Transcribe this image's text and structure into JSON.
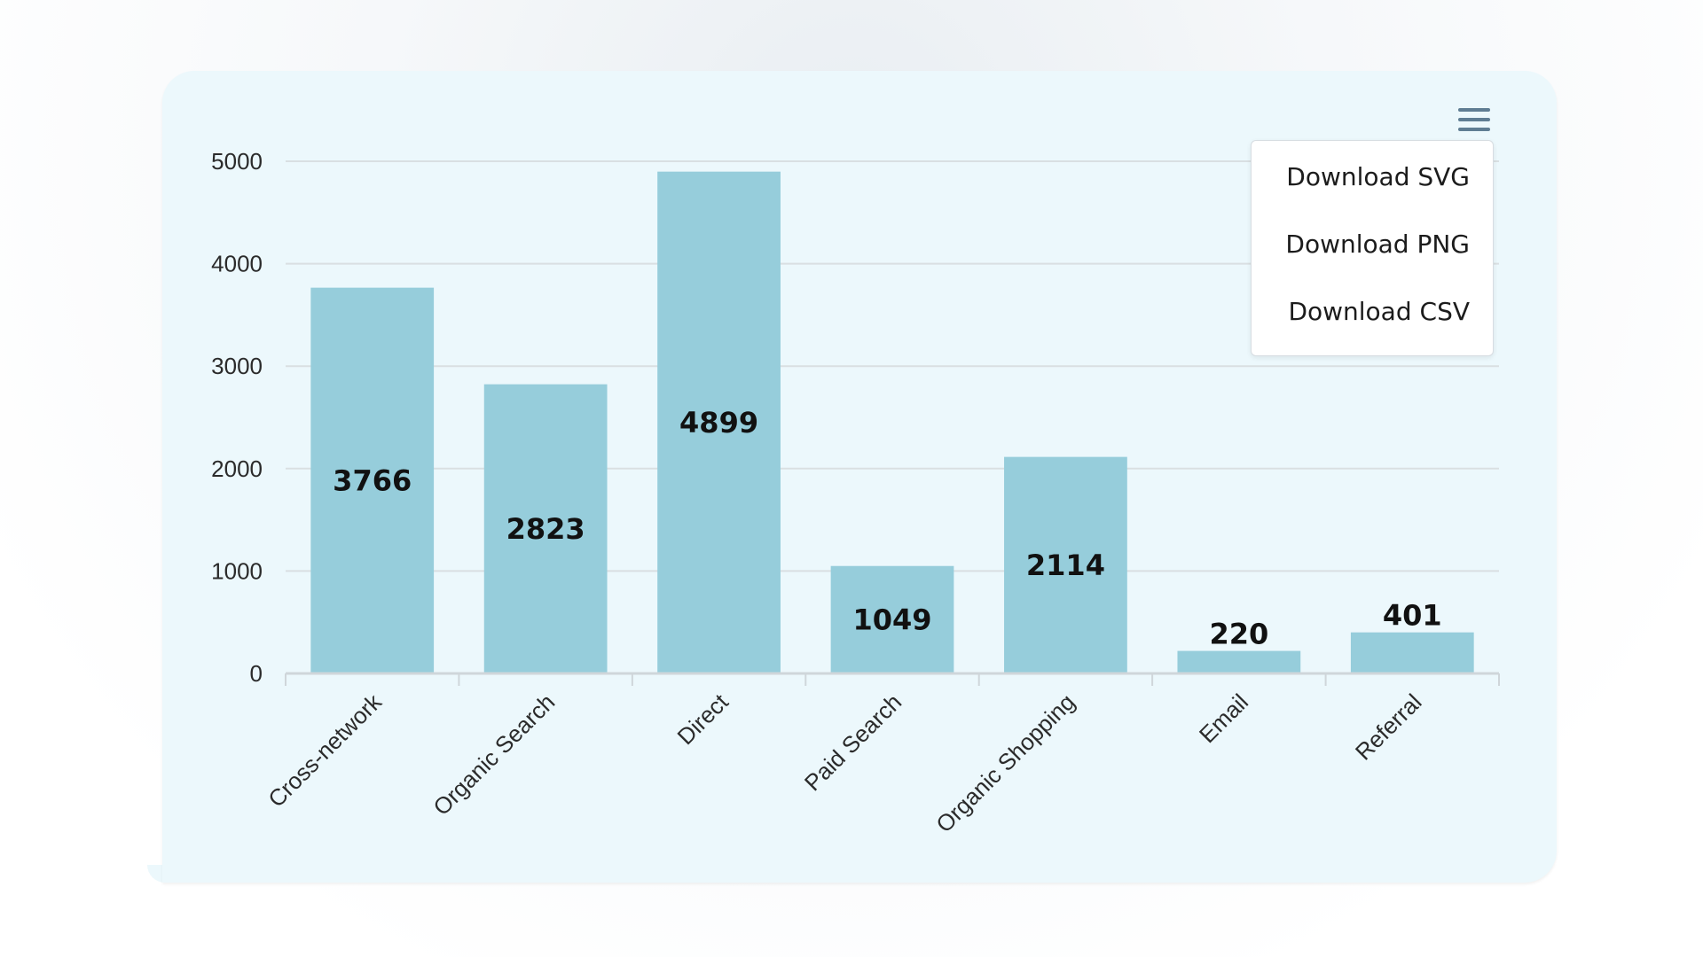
{
  "chart_data": {
    "type": "bar",
    "categories": [
      "Cross-network",
      "Organic Search",
      "Direct",
      "Paid Search",
      "Organic Shopping",
      "Email",
      "Referral"
    ],
    "values": [
      3766,
      2823,
      4899,
      1049,
      2114,
      220,
      401
    ],
    "title": "",
    "xlabel": "",
    "ylabel": "",
    "ylim": [
      0,
      5000
    ],
    "yticks": [
      0,
      1000,
      2000,
      3000,
      4000,
      5000
    ],
    "grid": true,
    "data_labels": true,
    "bar_color": "#96cddb"
  },
  "menu": {
    "items": [
      {
        "label": "Download SVG"
      },
      {
        "label": "Download PNG"
      },
      {
        "label": "Download CSV"
      }
    ]
  },
  "colors": {
    "card_background": "#ecf8fc",
    "bar": "#96cddb",
    "gridline": "#d9dfe2",
    "menu_icon": "#5f7d93"
  }
}
